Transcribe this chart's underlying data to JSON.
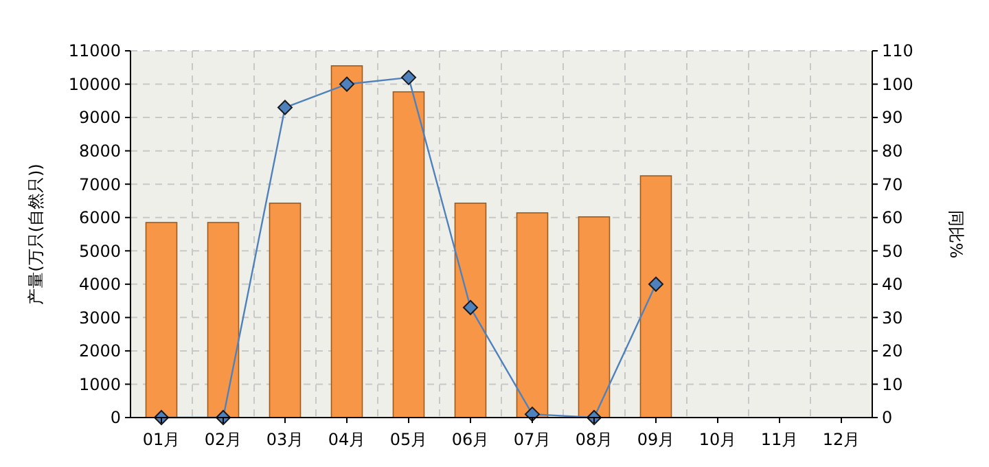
{
  "chart_data": {
    "type": "bar",
    "ylabel": "产量(万只(自然只))",
    "y2label": "同比%",
    "categories": [
      "01月",
      "02月",
      "03月",
      "04月",
      "05月",
      "06月",
      "07月",
      "08月",
      "09月",
      "10月",
      "11月",
      "12月"
    ],
    "series": [
      {
        "color": "#f79646",
        "values": [
          5850,
          5850,
          6430,
          10550,
          9770,
          6430,
          6140,
          6020,
          7250,
          null,
          null,
          null
        ]
      },
      {
        "type": "line",
        "axis": "y2",
        "color": "#4f81bd",
        "marker": "diamond",
        "values": [
          0,
          0,
          93,
          100,
          102,
          33,
          1,
          0,
          40,
          null,
          null,
          null
        ]
      }
    ],
    "ylim": [
      0,
      11000
    ],
    "yticks": [
      0,
      1000,
      2000,
      3000,
      4000,
      5000,
      6000,
      7000,
      8000,
      9000,
      10000,
      11000
    ],
    "y2lim": [
      0,
      110
    ],
    "y2ticks": [
      0,
      10,
      20,
      30,
      40,
      50,
      60,
      70,
      80,
      90,
      100,
      110
    ],
    "grid": true
  }
}
